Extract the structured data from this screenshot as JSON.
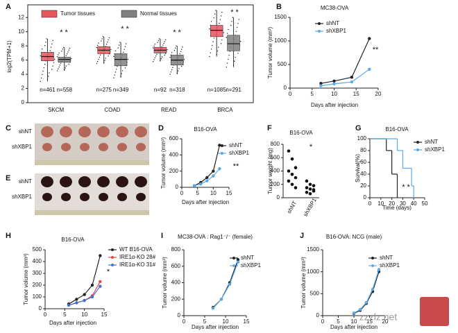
{
  "chart_data": [
    {
      "type": "box",
      "panel": "A",
      "ylabel": "log2(TPM+1)",
      "categories": [
        "SKCM",
        "COAD",
        "READ",
        "BRCA"
      ],
      "ylim": [
        0,
        13
      ],
      "yticks": [
        0,
        2,
        4,
        6,
        8,
        10,
        12
      ],
      "series": [
        {
          "name": "Tumor tissues",
          "color": "#e8555c",
          "values": [
            6.5,
            7.4,
            7.4,
            10.2
          ],
          "q1": [
            5.9,
            6.9,
            7.0,
            9.3
          ],
          "q3": [
            7.1,
            7.9,
            7.8,
            10.9
          ],
          "low": [
            3,
            5.5,
            5.8,
            6.5
          ],
          "high": [
            9,
            9.3,
            9,
            13
          ],
          "n_labels": [
            "n=461",
            "n=275",
            "n=92",
            "n=1085"
          ]
        },
        {
          "name": "Normal tissues",
          "color": "#808080",
          "values": [
            6.1,
            6.1,
            6.0,
            8.3
          ],
          "q1": [
            5.7,
            5.2,
            5.3,
            7.3
          ],
          "q3": [
            6.4,
            6.9,
            6.7,
            9.5
          ],
          "low": [
            4.5,
            3.5,
            4,
            5
          ],
          "high": [
            7.8,
            8.5,
            8,
            12
          ],
          "n_labels": [
            "n=558",
            "n=349",
            "n=318",
            "n=291"
          ]
        }
      ],
      "annotations": [
        "* *",
        "* *",
        "* *",
        "* *"
      ]
    },
    {
      "type": "line",
      "panel": "B",
      "title": "MC38-OVA",
      "xlabel": "Days after injection",
      "ylabel": "Tumor volume (mm³)",
      "x": [
        7,
        10,
        14,
        18
      ],
      "xlim": [
        0,
        20
      ],
      "xticks": [
        0,
        5,
        10,
        15,
        20
      ],
      "ylim": [
        0,
        1500
      ],
      "yticks": [
        0,
        500,
        1000,
        1500
      ],
      "series": [
        {
          "name": "shNT",
          "color": "#222222",
          "values": [
            100,
            150,
            230,
            1050
          ]
        },
        {
          "name": "shXBP1",
          "color": "#5aa9e6",
          "values": [
            50,
            90,
            130,
            400
          ]
        }
      ],
      "annotations": [
        "**"
      ]
    },
    {
      "type": "line",
      "panel": "D",
      "title": "B16-OVA",
      "xlabel": "Days after injection",
      "ylabel": "Tumor volume (mm³)",
      "x": [
        4,
        6,
        8,
        10,
        12
      ],
      "xlim": [
        0,
        15
      ],
      "xticks": [
        0,
        5,
        10,
        15
      ],
      "ylim": [
        0,
        600
      ],
      "yticks": [
        0,
        200,
        400,
        600
      ],
      "series": [
        {
          "name": "shNT",
          "color": "#222222",
          "values": [
            20,
            60,
            120,
            200,
            520
          ]
        },
        {
          "name": "shXBP1",
          "color": "#5aa9e6",
          "values": [
            20,
            40,
            80,
            140,
            230
          ]
        }
      ],
      "annotations": [
        "**"
      ]
    },
    {
      "type": "strip",
      "panel": "F",
      "title": "B16-OVA",
      "ylabel": "Tumor weight (mg)",
      "categories": [
        "shNT",
        "shXBP1"
      ],
      "ylim": [
        0,
        800
      ],
      "yticks": [
        0,
        200,
        400,
        600,
        800
      ],
      "values": [
        [
          700,
          580,
          450,
          400,
          350,
          300,
          250,
          200,
          150
        ],
        [
          250,
          200,
          180,
          150,
          130,
          100,
          80,
          60,
          120
        ]
      ],
      "annotations": [
        "*"
      ]
    },
    {
      "type": "step",
      "panel": "G",
      "title": "B16-OVA",
      "xlabel": "Time (days)",
      "ylabel": "Survival(%)",
      "xlim": [
        0,
        50
      ],
      "xticks": [
        0,
        10,
        20,
        30,
        40,
        50
      ],
      "ylim": [
        0,
        100
      ],
      "yticks": [
        0,
        20,
        40,
        60,
        80,
        100
      ],
      "series": [
        {
          "name": "shNT",
          "color": "#222222",
          "x": [
            0,
            15,
            20,
            25
          ],
          "values": [
            100,
            80,
            40,
            0
          ]
        },
        {
          "name": "shXBP1",
          "color": "#5aa9e6",
          "x": [
            0,
            25,
            30,
            38,
            40
          ],
          "values": [
            100,
            80,
            50,
            20,
            0
          ]
        }
      ],
      "annotations": [
        "* *"
      ]
    },
    {
      "type": "line",
      "panel": "H",
      "title": "B16-OVA",
      "xlabel": "Days after injection",
      "ylabel": "Tumor volume (mm³)",
      "x": [
        6,
        8,
        10,
        12,
        14
      ],
      "xlim": [
        0,
        15
      ],
      "xticks": [
        0,
        5,
        10,
        15
      ],
      "ylim": [
        0,
        500
      ],
      "yticks": [
        0,
        100,
        200,
        300,
        400,
        500
      ],
      "series": [
        {
          "name": "WT B16-OVA",
          "color": "#222222",
          "values": [
            40,
            80,
            120,
            200,
            450
          ]
        },
        {
          "name": "IRE1α-KO 28#",
          "color": "#e8454c",
          "values": [
            30,
            50,
            70,
            110,
            230
          ]
        },
        {
          "name": "IRE1α-KO 31#",
          "color": "#3d6fd6",
          "values": [
            30,
            50,
            70,
            100,
            190
          ]
        }
      ],
      "annotations": [
        "*"
      ]
    },
    {
      "type": "line",
      "panel": "I",
      "title": "MC38-OVA : Rag1⁻/⁻ (female)",
      "xlabel": "Days after injection",
      "ylabel": "Tumor volume (mm³)",
      "x": [
        7,
        9,
        11,
        13
      ],
      "xlim": [
        0,
        15
      ],
      "xticks": [
        0,
        5,
        10,
        15
      ],
      "ylim": [
        0,
        800
      ],
      "yticks": [
        0,
        200,
        400,
        600,
        800
      ],
      "series": [
        {
          "name": "shNT",
          "color": "#222222",
          "values": [
            100,
            200,
            400,
            680
          ]
        },
        {
          "name": "shXBP1",
          "color": "#5aa9e6",
          "values": [
            90,
            200,
            380,
            650
          ]
        }
      ]
    },
    {
      "type": "line",
      "panel": "J",
      "title": "B16-OVA: NCG (male)",
      "xlabel": "Days after injection",
      "ylabel": "Tumor volume (mm³)",
      "x": [
        10,
        12,
        14,
        16,
        18
      ],
      "xlim": [
        0,
        20
      ],
      "xticks": [
        0,
        5,
        10,
        15,
        20
      ],
      "ylim": [
        0,
        1500
      ],
      "yticks": [
        0,
        500,
        1000,
        1500
      ],
      "series": [
        {
          "name": "shNT",
          "color": "#222222",
          "values": [
            50,
            120,
            280,
            550,
            1000
          ]
        },
        {
          "name": "shXBP1",
          "color": "#5aa9e6",
          "values": [
            60,
            140,
            300,
            600,
            1050
          ]
        }
      ]
    }
  ],
  "photos": [
    {
      "panel": "C",
      "rows": [
        "shNT",
        "shXBP1"
      ]
    },
    {
      "panel": "E",
      "rows": [
        "shNT",
        "shXBP1"
      ]
    }
  ],
  "watermark": "zzzlz.net"
}
